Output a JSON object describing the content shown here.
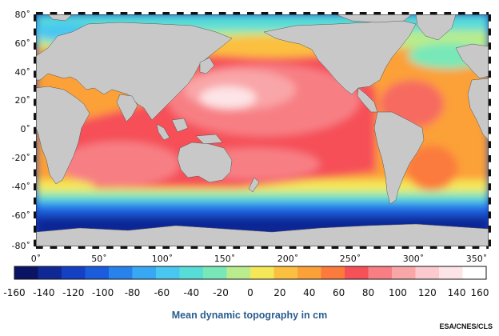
{
  "map": {
    "lat_ticks": [
      "80˚",
      "60˚",
      "40˚",
      "20˚",
      "0˚",
      "-20˚",
      "-40˚",
      "-60˚",
      "-80˚"
    ],
    "lon_ticks": [
      "0˚",
      "50˚",
      "100˚",
      "150˚",
      "200˚",
      "250˚",
      "300˚",
      "350˚"
    ],
    "land_color": "#c8c8c8",
    "ocean_color_mid": "#f4605f"
  },
  "colorbar": {
    "labels": [
      "-160",
      "-140",
      "-120",
      "-100",
      "-80",
      "-60",
      "-40",
      "-20",
      "0",
      "20",
      "40",
      "60",
      "80",
      "100",
      "120",
      "140",
      "160"
    ],
    "colors": [
      "#0a1464",
      "#0f2896",
      "#1440c4",
      "#1a5cdc",
      "#2882ec",
      "#38a8f4",
      "#48c8f0",
      "#58dcd8",
      "#78e8b8",
      "#b8ec8c",
      "#f4e858",
      "#fcc040",
      "#fca038",
      "#fb7a3c",
      "#f65058",
      "#f77f84",
      "#f9a6a8",
      "#fbcace",
      "#fde4e6",
      "#ffffff"
    ]
  },
  "caption": "Mean dynamic topography in cm",
  "credit": "ESA/CNES/CLS"
}
